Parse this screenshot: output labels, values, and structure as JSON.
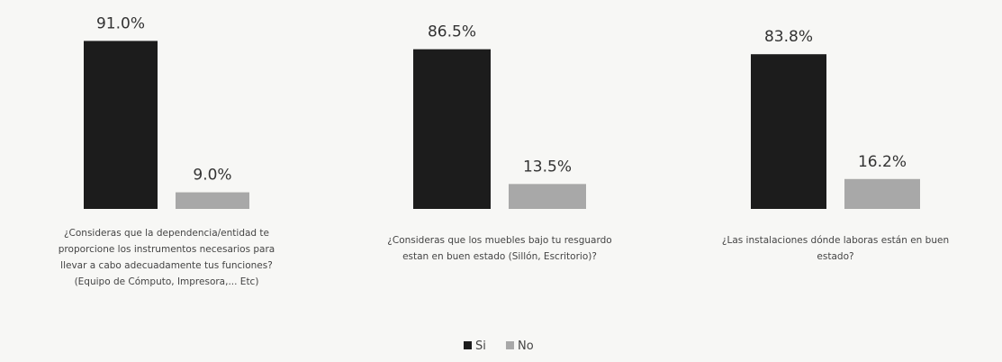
{
  "chart_data": {
    "type": "bar",
    "categories": [
      [
        "¿Consideras que la dependencia/entidad te",
        "proporcione los instrumentos necesarios para",
        "llevar a cabo adecuadamente tus funciones?",
        "(Equipo de Cómputo, Impresora,... Etc)"
      ],
      [
        "¿Consideras que los muebles bajo tu resguardo",
        "estan en buen estado (Sillón, Escritorio)?"
      ],
      [
        "¿Las instalaciones dónde laboras están en buen",
        "estado?"
      ]
    ],
    "series": [
      {
        "name": "Si",
        "values": [
          91.0,
          86.5,
          83.8
        ],
        "labels": [
          "91.0%",
          "86.5%",
          "83.8%"
        ],
        "color": "#1c1c1c"
      },
      {
        "name": "No",
        "values": [
          9.0,
          13.5,
          16.2
        ],
        "labels": [
          "9.0%",
          "13.5%",
          "16.2%"
        ],
        "color": "#a8a8a8"
      }
    ],
    "ylim": [
      0,
      100
    ],
    "grid": false,
    "legend": "bottom-center"
  }
}
